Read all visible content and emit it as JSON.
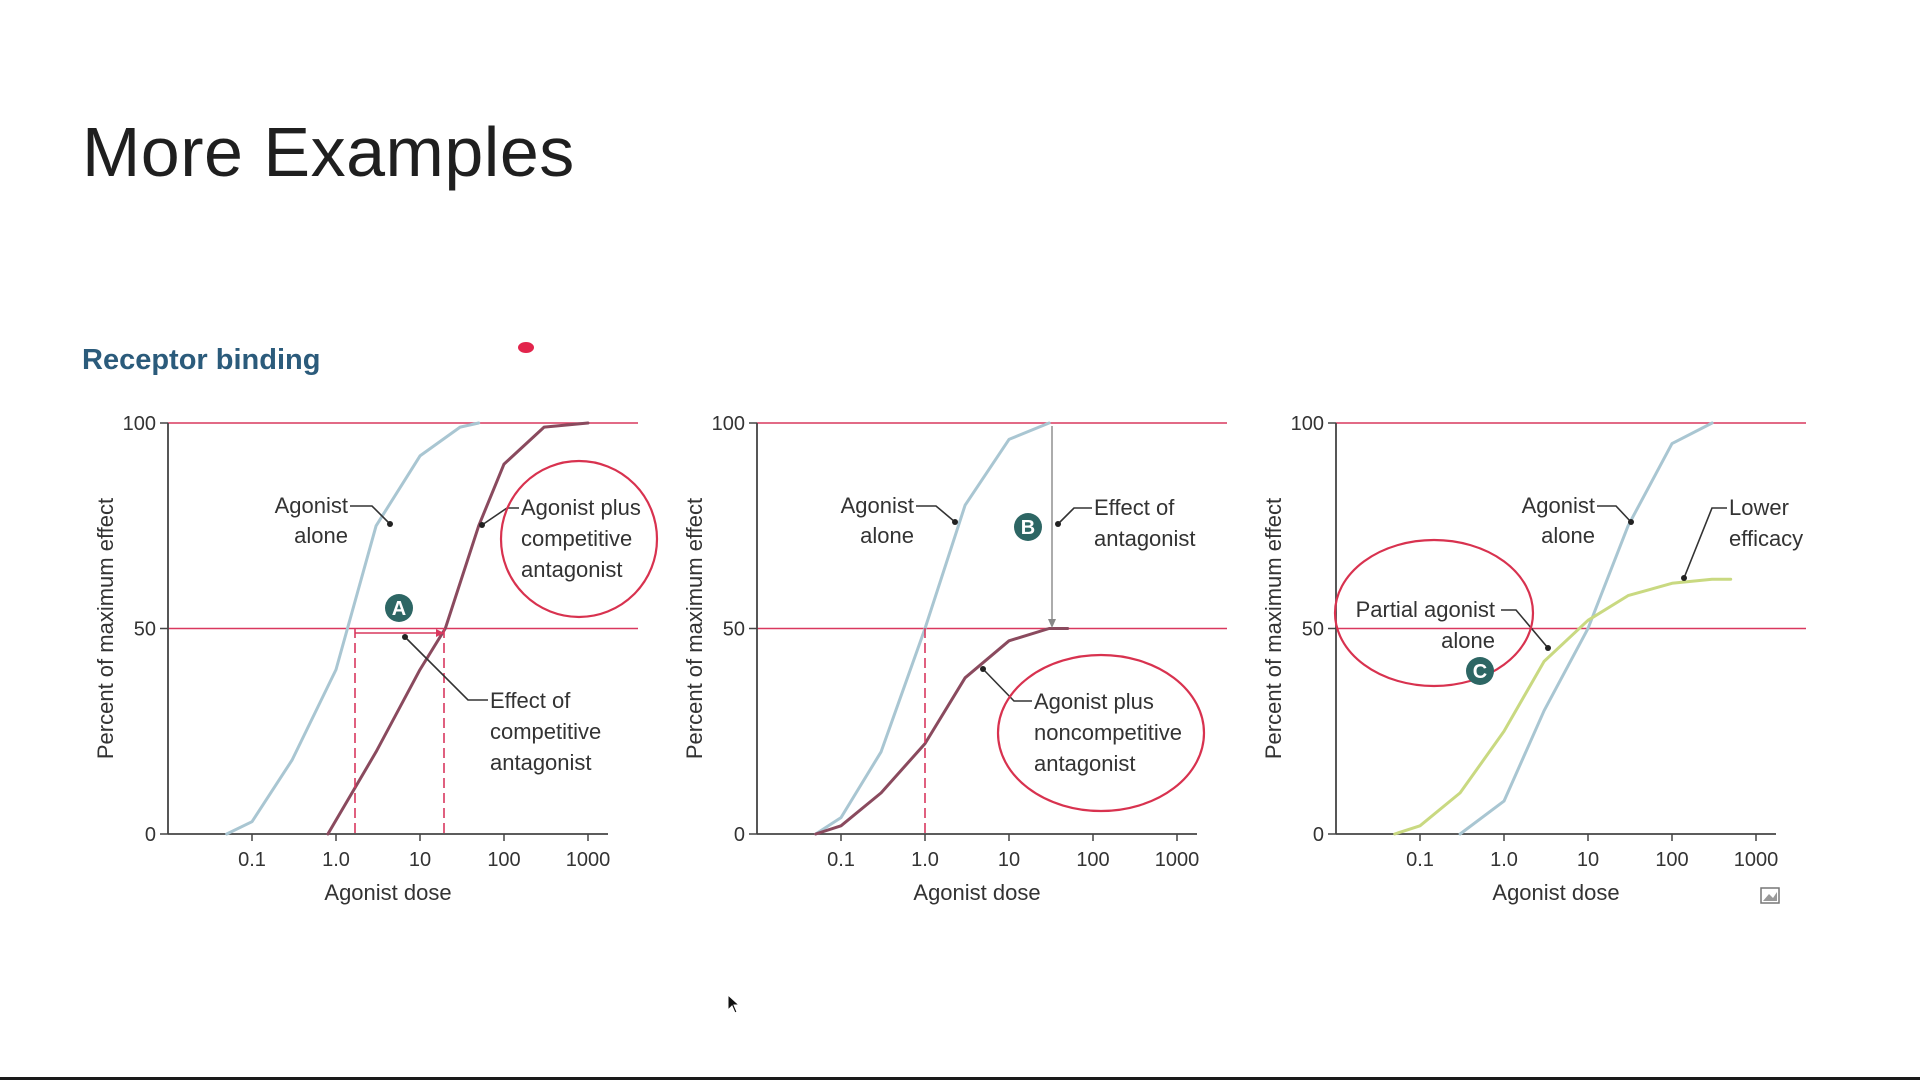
{
  "slide": {
    "title": "More Examples",
    "section": "Receptor binding"
  },
  "colors": {
    "agonist_alone": "#a9c6d2",
    "with_antagonist": "#8a4a5e",
    "partial_agonist": "#c9d981",
    "reference_lines": "#d9385f",
    "circle": "#d8324f",
    "marker_fill": "#2d6664",
    "axis": "#444444"
  },
  "chart_data": [
    {
      "type": "line",
      "x_scale": "log",
      "xlabel": "Agonist dose",
      "ylabel": "Percent of maximum effect",
      "xticks": [
        "0.1",
        "1.0",
        "10",
        "100",
        "1000"
      ],
      "yticks": [
        "0",
        "50",
        "100"
      ],
      "xlim": [
        0.01,
        1000
      ],
      "ylim": [
        0,
        100
      ],
      "series": [
        {
          "key": "agonist",
          "x": [
            0.05,
            0.1,
            0.3,
            1.0,
            3,
            10,
            30,
            50
          ],
          "y": [
            0,
            3,
            18,
            40,
            75,
            92,
            99,
            100
          ]
        },
        {
          "key": "antagonist",
          "x": [
            0.8,
            3,
            10,
            20,
            50,
            100,
            300,
            1000
          ],
          "y": [
            0,
            20,
            40,
            50,
            75,
            90,
            99,
            100
          ]
        }
      ],
      "reference_y": [
        50,
        100
      ],
      "annotations": [
        {
          "id": "agonist_alone",
          "lines": [
            "Agonist",
            "alone"
          ]
        },
        {
          "id": "plus_competitive",
          "lines": [
            "Agonist plus",
            "competitive",
            "antagonist"
          ]
        },
        {
          "id": "effect_competitive",
          "lines": [
            "Effect of",
            "competitive",
            "antagonist"
          ]
        }
      ],
      "marker": "A"
    },
    {
      "type": "line",
      "x_scale": "log",
      "xlabel": "Agonist dose",
      "ylabel": "Percent of maximum effect",
      "xticks": [
        "0.1",
        "1.0",
        "10",
        "100",
        "1000"
      ],
      "yticks": [
        "0",
        "50",
        "100"
      ],
      "xlim": [
        0.01,
        1000
      ],
      "ylim": [
        0,
        100
      ],
      "series": [
        {
          "key": "agonist",
          "x": [
            0.05,
            0.1,
            0.3,
            1.0,
            3,
            10,
            30
          ],
          "y": [
            0,
            4,
            20,
            50,
            80,
            96,
            100
          ]
        },
        {
          "key": "antagonist",
          "x": [
            0.05,
            0.1,
            0.3,
            1.0,
            3,
            10,
            30,
            50
          ],
          "y": [
            0,
            2,
            10,
            22,
            38,
            47,
            50,
            50
          ]
        }
      ],
      "reference_y": [
        50,
        100
      ],
      "annotations": [
        {
          "id": "agonist_alone",
          "lines": [
            "Agonist",
            "alone"
          ]
        },
        {
          "id": "effect_antagonist",
          "lines": [
            "Effect of",
            "antagonist"
          ]
        },
        {
          "id": "plus_noncompetitive",
          "lines": [
            "Agonist plus",
            "noncompetitive",
            "antagonist"
          ]
        }
      ],
      "marker": "B"
    },
    {
      "type": "line",
      "x_scale": "log",
      "xlabel": "Agonist dose",
      "ylabel": "Percent of maximum effect",
      "xticks": [
        "0.1",
        "1.0",
        "10",
        "100",
        "1000"
      ],
      "yticks": [
        "0",
        "50",
        "100"
      ],
      "xlim": [
        0.01,
        1000
      ],
      "ylim": [
        0,
        100
      ],
      "series": [
        {
          "key": "agonist",
          "x": [
            0.3,
            1.0,
            3,
            10,
            30,
            100,
            300
          ],
          "y": [
            0,
            8,
            30,
            50,
            75,
            95,
            100
          ]
        },
        {
          "key": "partial",
          "x": [
            0.05,
            0.1,
            0.3,
            1.0,
            3,
            10,
            30,
            100,
            300,
            500
          ],
          "y": [
            0,
            2,
            10,
            25,
            42,
            52,
            58,
            61,
            62,
            62
          ]
        }
      ],
      "reference_y": [
        50,
        100
      ],
      "annotations": [
        {
          "id": "agonist_alone",
          "lines": [
            "Agonist",
            "alone"
          ]
        },
        {
          "id": "lower_efficacy",
          "lines": [
            "Lower",
            "efficacy"
          ]
        },
        {
          "id": "partial_agonist_alone",
          "lines": [
            "Partial agonist",
            "alone"
          ]
        }
      ],
      "marker": "C"
    }
  ]
}
